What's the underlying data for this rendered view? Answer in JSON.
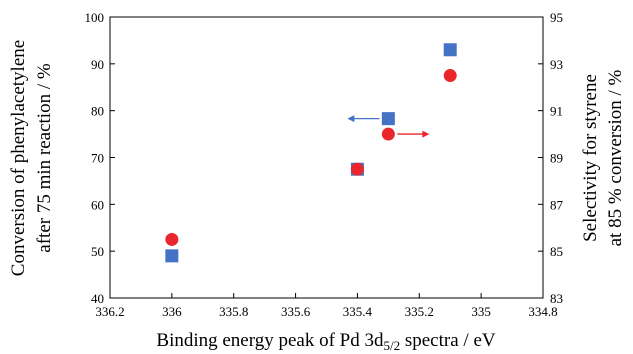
{
  "chart_data": {
    "type": "scatter",
    "title": "",
    "xlabel": "Binding energy peak of Pd 3d",
    "xlabel_sub": "5/2",
    "xlabel_suffix": " spectra / eV",
    "ylabel_left_line1": "Conversion of phenylacetylene",
    "ylabel_left_line2": "after 75 min reaction / %",
    "ylabel_right_line1": "Selectivity for styrene",
    "ylabel_right_line2": "at 85 % conversion / %",
    "xlim": [
      336.2,
      334.8
    ],
    "x_reversed": true,
    "ylim_left": [
      40,
      100
    ],
    "ylim_right": [
      83,
      95
    ],
    "x_ticks": [
      "336.2",
      "336",
      "335.8",
      "335.6",
      "335.4",
      "335.2",
      "335",
      "334.8"
    ],
    "x_tick_values": [
      336.2,
      336.0,
      335.8,
      335.6,
      335.4,
      335.2,
      335.0,
      334.8
    ],
    "y_left_ticks": [
      "40",
      "50",
      "60",
      "70",
      "80",
      "90",
      "100"
    ],
    "y_left_tick_values": [
      40,
      50,
      60,
      70,
      80,
      90,
      100
    ],
    "y_right_ticks": [
      "83",
      "85",
      "87",
      "89",
      "91",
      "93",
      "95"
    ],
    "y_right_tick_values": [
      83,
      85,
      87,
      89,
      91,
      93,
      95
    ],
    "grid": false,
    "series": [
      {
        "axis": "left",
        "marker": "square",
        "color": "#4472C4",
        "x": [
          336.0,
          335.4,
          335.3,
          335.1
        ],
        "y": [
          49,
          67.5,
          78.3,
          93
        ]
      },
      {
        "axis": "right",
        "marker": "circle",
        "color": "#E8262B",
        "x": [
          336.0,
          335.4,
          335.3,
          335.1
        ],
        "y": [
          85.5,
          88.5,
          90.0,
          92.5
        ]
      }
    ],
    "annotations": [
      {
        "type": "arrow",
        "series_index": 0,
        "direction": "left",
        "color": "#4472C4"
      },
      {
        "type": "arrow",
        "series_index": 1,
        "direction": "right",
        "color": "#E8262B"
      }
    ]
  }
}
